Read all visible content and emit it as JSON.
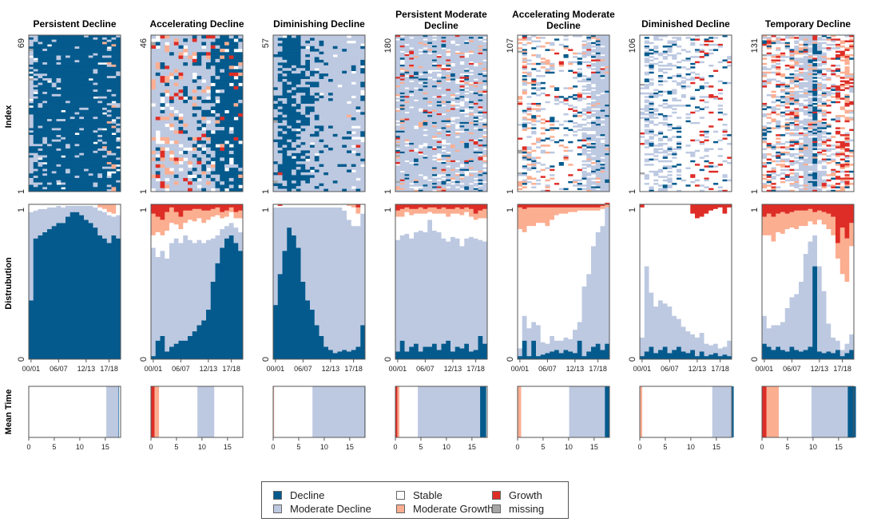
{
  "row_labels": {
    "index": "Index",
    "distribution": "Distrubution",
    "mean_time": "Mean Time"
  },
  "states": [
    {
      "key": "decline",
      "label": "Decline",
      "color": "#045a8d"
    },
    {
      "key": "moderate_decline",
      "label": "Moderate Decline",
      "color": "#bdc9e1"
    },
    {
      "key": "stable",
      "label": "Stable",
      "color": "#ffffff"
    },
    {
      "key": "moderate_growth",
      "label": "Moderate Growth",
      "color": "#fcae91"
    },
    {
      "key": "growth",
      "label": "Growth",
      "color": "#de2d26"
    },
    {
      "key": "missing",
      "label": "missing",
      "color": "#a6a6a6"
    }
  ],
  "chart_data": [
    {
      "type": "sequence-cluster",
      "title": "Persistent Decline",
      "n": 69,
      "seed": 11,
      "index_ticks": [
        "1",
        "69"
      ],
      "dist_ticks": [
        "0",
        "1"
      ],
      "time_ticks": [
        "00/01",
        "06/07",
        "12/13",
        "17/18"
      ],
      "dist_decline": [
        0.38,
        0.78,
        0.8,
        0.82,
        0.84,
        0.86,
        0.88,
        0.88,
        0.92,
        0.95,
        0.95,
        0.93,
        0.9,
        0.88,
        0.85,
        0.8,
        0.78,
        0.75,
        0.8,
        0.78
      ],
      "dist_moddecl": [
        0.57,
        0.18,
        0.17,
        0.15,
        0.14,
        0.12,
        0.11,
        0.1,
        0.07,
        0.04,
        0.04,
        0.06,
        0.09,
        0.11,
        0.13,
        0.16,
        0.17,
        0.18,
        0.12,
        0.15
      ],
      "dist_modgrow": [
        0,
        0,
        0,
        0,
        0,
        0,
        0,
        0,
        0,
        0,
        0,
        0,
        0,
        0,
        0,
        0.02,
        0.03,
        0.05,
        0.06,
        0
      ],
      "dist_growth": [
        0,
        0,
        0,
        0,
        0,
        0,
        0,
        0,
        0,
        0,
        0,
        0,
        0,
        0,
        0,
        0,
        0,
        0,
        0,
        0
      ],
      "mean_time": [
        0.1,
        2.4,
        15.2,
        0,
        0
      ],
      "time_axis_ticks": [
        "0",
        "5",
        "10",
        "15"
      ]
    },
    {
      "type": "sequence-cluster",
      "title": "Accelerating Decline",
      "n": 46,
      "seed": 23,
      "index_ticks": [
        "1",
        "46"
      ],
      "dist_ticks": [
        "0",
        "1"
      ],
      "time_ticks": [
        "00/01",
        "06/07",
        "12/13",
        "17/18"
      ],
      "dist_decline": [
        0.02,
        0.12,
        0.15,
        0.05,
        0.08,
        0.1,
        0.12,
        0.12,
        0.15,
        0.18,
        0.22,
        0.25,
        0.32,
        0.5,
        0.62,
        0.72,
        0.78,
        0.8,
        0.75,
        0.7
      ],
      "dist_moddecl": [
        0.7,
        0.54,
        0.55,
        0.6,
        0.67,
        0.68,
        0.63,
        0.68,
        0.62,
        0.57,
        0.55,
        0.5,
        0.45,
        0.28,
        0.18,
        0.12,
        0.08,
        0.08,
        0.1,
        0.12
      ],
      "dist_modgrow": [
        0.14,
        0.1,
        0.1,
        0.12,
        0.1,
        0.08,
        0.08,
        0.08,
        0.06,
        0.08,
        0.06,
        0.08,
        0.06,
        0.05,
        0.05,
        0.04,
        0.04,
        0.03,
        0.04,
        0.05
      ],
      "dist_growth": [
        0.06,
        0.08,
        0.1,
        0.05,
        0.02,
        0.05,
        0.08,
        0.04,
        0.04,
        0.03,
        0.03,
        0.04,
        0.04,
        0.03,
        0.02,
        0.05,
        0.04,
        0.02,
        0.05,
        0.04
      ],
      "mean_time": [
        0,
        3.3,
        7.5,
        0.9,
        0.7
      ],
      "time_axis_ticks": [
        "0",
        "5",
        "10",
        "15"
      ]
    },
    {
      "type": "sequence-cluster",
      "title": "Diminishing Decline",
      "n": 57,
      "seed": 37,
      "index_ticks": [
        "1",
        "57"
      ],
      "dist_ticks": [
        "0",
        "1"
      ],
      "time_ticks": [
        "00/01",
        "06/07",
        "12/13",
        "17/18"
      ],
      "dist_decline": [
        0.35,
        0.55,
        0.7,
        0.85,
        0.8,
        0.72,
        0.5,
        0.38,
        0.32,
        0.22,
        0.15,
        0.08,
        0.06,
        0.04,
        0.05,
        0.06,
        0.05,
        0.06,
        0.08,
        0.22
      ],
      "dist_moddecl": [
        0.63,
        0.43,
        0.28,
        0.13,
        0.18,
        0.26,
        0.48,
        0.6,
        0.66,
        0.76,
        0.83,
        0.9,
        0.92,
        0.94,
        0.93,
        0.9,
        0.85,
        0.8,
        0.78,
        0.72
      ],
      "dist_modgrow": [
        0,
        0,
        0,
        0,
        0,
        0,
        0,
        0,
        0,
        0,
        0,
        0,
        0,
        0,
        0,
        0,
        0.01,
        0.02,
        0.04,
        0
      ],
      "dist_growth": [
        0,
        0.01,
        0,
        0,
        0,
        0,
        0,
        0,
        0,
        0,
        0,
        0,
        0,
        0,
        0,
        0,
        0,
        0,
        0.02,
        0
      ],
      "mean_time": [
        0.1,
        10.2,
        7.5,
        0.1,
        0.1
      ],
      "time_axis_ticks": [
        "0",
        "5",
        "10",
        "15"
      ]
    },
    {
      "type": "sequence-cluster",
      "title": "Persistent Moderate Decline",
      "n": 180,
      "seed": 41,
      "index_ticks": [
        "1",
        "180"
      ],
      "dist_ticks": [
        "0",
        "1"
      ],
      "time_ticks": [
        "00/01",
        "06/07",
        "12/13",
        "17/18"
      ],
      "dist_decline": [
        0.05,
        0.12,
        0.05,
        0.08,
        0.1,
        0.05,
        0.08,
        0.08,
        0.1,
        0.06,
        0.1,
        0.12,
        0.05,
        0.08,
        0.07,
        0.1,
        0.05,
        0.06,
        0.15,
        0.1
      ],
      "dist_moddecl": [
        0.72,
        0.68,
        0.76,
        0.7,
        0.72,
        0.78,
        0.74,
        0.82,
        0.73,
        0.76,
        0.68,
        0.64,
        0.74,
        0.7,
        0.66,
        0.68,
        0.74,
        0.72,
        0.62,
        0.66
      ],
      "dist_modgrow": [
        0.04,
        0.05,
        0.03,
        0.04,
        0.03,
        0.04,
        0.03,
        0.03,
        0.04,
        0.03,
        0.04,
        0.05,
        0.03,
        0.04,
        0.04,
        0.03,
        0.05,
        0.04,
        0.05,
        0.06
      ],
      "dist_growth": [
        0.04,
        0.03,
        0.02,
        0.03,
        0.03,
        0.02,
        0.03,
        0.02,
        0.02,
        0.03,
        0.02,
        0.03,
        0.03,
        0.02,
        0.03,
        0.02,
        0.03,
        0.06,
        0.04,
        0.03
      ],
      "mean_time": [
        1.2,
        12.2,
        3.6,
        0.4,
        0.4
      ],
      "time_axis_ticks": [
        "0",
        "5",
        "10",
        "15"
      ]
    },
    {
      "type": "sequence-cluster",
      "title": "Accelerating Moderate Decline",
      "n": 107,
      "seed": 53,
      "index_ticks": [
        "1",
        "107"
      ],
      "dist_ticks": [
        "0",
        "1"
      ],
      "time_ticks": [
        "00/01",
        "06/07",
        "12/13",
        "17/18"
      ],
      "dist_decline": [
        0.02,
        0.12,
        0.02,
        0.12,
        0.02,
        0.03,
        0.04,
        0.05,
        0.06,
        0.04,
        0.06,
        0.05,
        0.04,
        0.12,
        0.02,
        0.05,
        0.08,
        0.1,
        0.06,
        0.1
      ],
      "dist_moddecl": [
        0.05,
        0.16,
        0.18,
        0.12,
        0.2,
        0.08,
        0.06,
        0.1,
        0.06,
        0.08,
        0.08,
        0.08,
        0.15,
        0.12,
        0.45,
        0.5,
        0.65,
        0.72,
        0.8,
        0.88
      ],
      "dist_modgrow": [
        0.14,
        0.15,
        0.12,
        0.12,
        0.1,
        0.1,
        0.12,
        0.08,
        0.05,
        0.04,
        0.04,
        0.03,
        0.03,
        0.02,
        0.02,
        0.02,
        0.02,
        0.02,
        0.02,
        0.02
      ],
      "dist_growth": [
        0.02,
        0.03,
        0.02,
        0.02,
        0.02,
        0.02,
        0.02,
        0.02,
        0.02,
        0.02,
        0.02,
        0.02,
        0.02,
        0.02,
        0.02,
        0.02,
        0.02,
        0.02,
        0.01,
        0.01
      ],
      "mean_time": [
        0.9,
        7.0,
        9.4,
        0.7,
        0
      ],
      "time_axis_ticks": [
        "0",
        "5",
        "10",
        "15"
      ]
    },
    {
      "type": "sequence-cluster",
      "title": "Diminished Decline",
      "n": 106,
      "seed": 67,
      "index_ticks": [
        "1",
        "106"
      ],
      "dist_ticks": [
        "0",
        "1"
      ],
      "time_ticks": [
        "00/01",
        "06/07",
        "12/13",
        "17/18"
      ],
      "dist_decline": [
        0.02,
        0.05,
        0.08,
        0.04,
        0.06,
        0.08,
        0.04,
        0.06,
        0.08,
        0.05,
        0.04,
        0.06,
        0.02,
        0.05,
        0.02,
        0.03,
        0.04,
        0.02,
        0.03,
        0.02
      ],
      "dist_moddecl": [
        0.12,
        0.55,
        0.35,
        0.3,
        0.32,
        0.28,
        0.3,
        0.22,
        0.18,
        0.16,
        0.14,
        0.1,
        0.12,
        0.12,
        0.08,
        0.06,
        0.06,
        0.05,
        0.05,
        0.1
      ],
      "dist_modgrow": [
        0,
        0,
        0,
        0,
        0,
        0,
        0,
        0,
        0,
        0,
        0,
        0,
        0,
        0,
        0,
        0,
        0,
        0,
        0,
        0
      ],
      "dist_growth": [
        0.02,
        0,
        0,
        0,
        0,
        0,
        0,
        0,
        0,
        0,
        0,
        0.06,
        0.09,
        0.08,
        0.06,
        0.04,
        0.03,
        0.02,
        0.06,
        0.02
      ],
      "mean_time": [
        0.3,
        3.9,
        13.7,
        0.5,
        0
      ],
      "time_axis_ticks": [
        "0",
        "5",
        "10",
        "15"
      ]
    },
    {
      "type": "sequence-cluster",
      "title": "Temporary Decline",
      "n": 131,
      "seed": 79,
      "index_ticks": [
        "1",
        "131"
      ],
      "dist_ticks": [
        "0",
        "1"
      ],
      "time_ticks": [
        "00/01",
        "06/07",
        "12/13",
        "17/18"
      ],
      "dist_decline": [
        0.1,
        0.08,
        0.06,
        0.08,
        0.06,
        0.05,
        0.08,
        0.06,
        0.05,
        0.06,
        0.08,
        0.6,
        0.05,
        0.04,
        0.05,
        0.04,
        0.06,
        0.02,
        0.04,
        0.06
      ],
      "dist_moddecl": [
        0.18,
        0.12,
        0.16,
        0.14,
        0.18,
        0.28,
        0.32,
        0.36,
        0.45,
        0.62,
        0.68,
        0.2,
        0.55,
        0.4,
        0.18,
        0.1,
        0.06,
        0.04,
        0.06,
        0.1
      ],
      "dist_modgrow": [
        0.12,
        0.14,
        0.16,
        0.12,
        0.14,
        0.1,
        0.1,
        0.12,
        0.1,
        0.1,
        0.08,
        0.08,
        0.06,
        0.08,
        0.1,
        0.12,
        0.1,
        0.3,
        0.28,
        0.15
      ],
      "dist_growth": [
        0.08,
        0.06,
        0.08,
        0.06,
        0.05,
        0.06,
        0.05,
        0.04,
        0.04,
        0.04,
        0.03,
        0.05,
        0.04,
        0.05,
        0.06,
        0.08,
        0.25,
        0.15,
        0.22,
        0.12
      ],
      "mean_time": [
        1.6,
        7.1,
        6.4,
        2.4,
        0.9
      ],
      "time_axis_ticks": [
        "0",
        "5",
        "10",
        "15"
      ]
    }
  ]
}
